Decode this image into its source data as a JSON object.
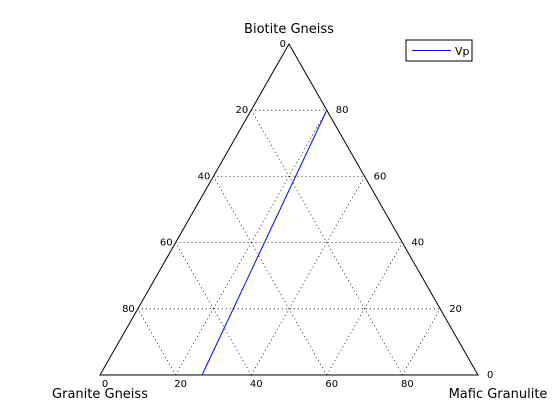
{
  "chart_data": {
    "type": "ternary",
    "corners": {
      "top": "Biotite Gneiss",
      "bottom_left": "Granite Gneiss",
      "bottom_right": "Mafic Granulite"
    },
    "ticks": {
      "bottom_axis": [
        "0",
        "20",
        "40",
        "60",
        "80"
      ],
      "left_axis": [
        "0",
        "20",
        "40",
        "60",
        "80"
      ],
      "right_axis": [
        "0",
        "20",
        "40",
        "60",
        "80"
      ]
    },
    "grid": "dotted",
    "legend": {
      "position": "top-right",
      "entries": [
        "Vp"
      ]
    },
    "series": [
      {
        "name": "Vp",
        "color": "#0000ff",
        "points": [
          {
            "biotite_gneiss": 0,
            "granite_gneiss": 73,
            "mafic_granulite": 27
          },
          {
            "biotite_gneiss": 80,
            "granite_gneiss": 0,
            "mafic_granulite": 20
          }
        ]
      }
    ]
  }
}
